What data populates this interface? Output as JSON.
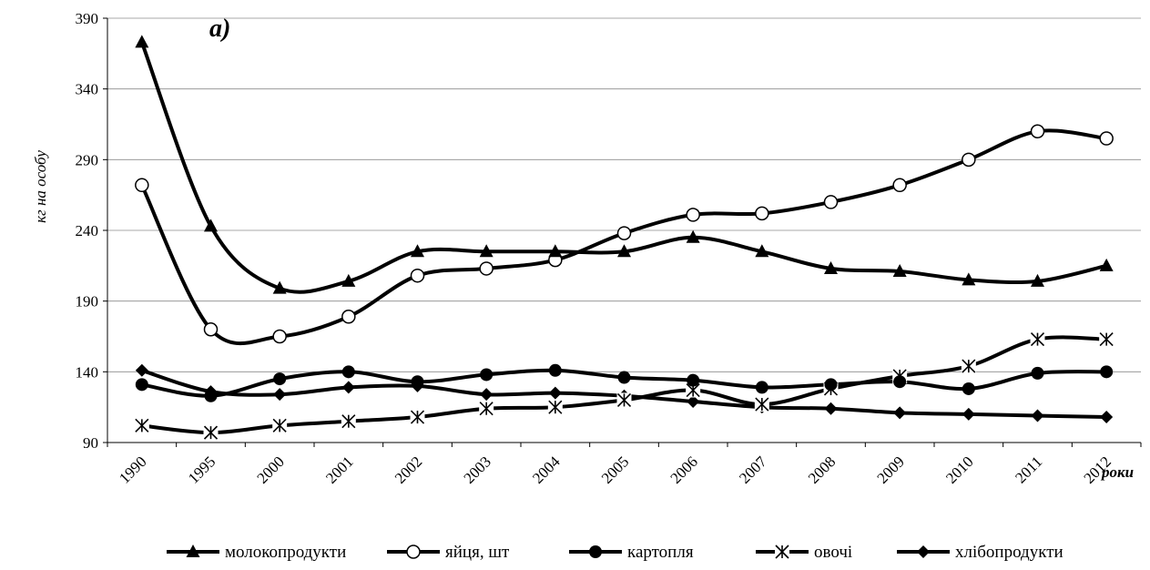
{
  "chart_data": {
    "type": "line",
    "panel_label": "a)",
    "xlabel": "роки",
    "ylabel": "кг на особу",
    "categories": [
      "1990",
      "1995",
      "2000",
      "2001",
      "2002",
      "2003",
      "2004",
      "2005",
      "2006",
      "2007",
      "2008",
      "2009",
      "2010",
      "2011",
      "2012"
    ],
    "ylim": [
      90,
      390
    ],
    "yticks": [
      "90",
      "140",
      "190",
      "240",
      "290",
      "340",
      "390"
    ],
    "grid": true,
    "legend_position": "bottom",
    "series": [
      {
        "name": "молокопродукти",
        "marker": "triangle",
        "values": [
          373,
          243,
          199,
          204,
          225,
          225,
          225,
          225,
          235,
          225,
          213,
          211,
          205,
          204,
          215
        ]
      },
      {
        "name": "яйця, шт",
        "marker": "circle-open",
        "values": [
          272,
          170,
          165,
          179,
          208,
          213,
          219,
          238,
          251,
          252,
          260,
          272,
          290,
          310,
          305
        ]
      },
      {
        "name": "картопля",
        "marker": "circle-filled",
        "values": [
          131,
          123,
          135,
          140,
          133,
          138,
          141,
          136,
          134,
          129,
          131,
          133,
          128,
          139,
          140
        ]
      },
      {
        "name": "овочі",
        "marker": "asterisk",
        "values": [
          102,
          97,
          102,
          105,
          108,
          114,
          115,
          120,
          127,
          117,
          128,
          137,
          144,
          163,
          163
        ]
      },
      {
        "name": "хлібопродукти",
        "marker": "diamond",
        "values": [
          141,
          126,
          124,
          129,
          130,
          124,
          125,
          123,
          119,
          115,
          114,
          111,
          110,
          109,
          108
        ]
      }
    ]
  }
}
